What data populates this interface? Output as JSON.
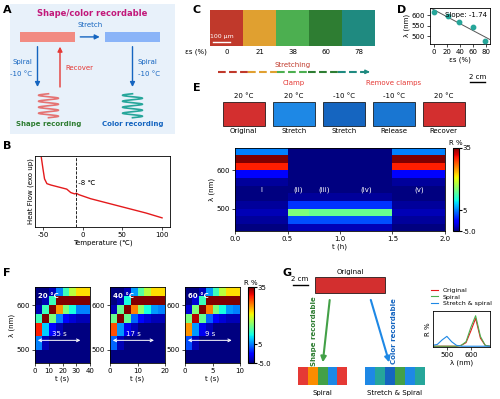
{
  "panels": [
    "A",
    "B",
    "C",
    "D",
    "E",
    "F",
    "G"
  ],
  "diagram_A": {
    "title": "Shape/color recordable",
    "stretch": "Stretch",
    "left_arrow": [
      "Spiral",
      "-10 °C"
    ],
    "recover": "Recover",
    "right_arrow": [
      "Spiral",
      "-10 °C"
    ],
    "left_result": "Shape recording",
    "right_result": "Color recording"
  },
  "image_C": {
    "colors": [
      "#c0392b",
      "#e0a030",
      "#4caf50",
      "#2e7d32",
      "#1f8a80"
    ],
    "strain_labels": [
      "0",
      "21",
      "38",
      "60",
      "78"
    ],
    "axis_label": "εs (%)",
    "arrow_label": "Stretching",
    "scale_bar": "100 μm"
  },
  "photos_E": {
    "photos": [
      {
        "temperature": "20 °C",
        "label": "Original",
        "color": "#d32f2f"
      },
      {
        "temperature": "20 °C",
        "label": "Stretch",
        "color": "#1e88e5",
        "note": "Clamp"
      },
      {
        "temperature": "-10 °C",
        "label": "Stretch",
        "color": "#1565c0"
      },
      {
        "temperature": "-10 °C",
        "label": "Release",
        "color": "#1976d2",
        "note": "Remove clamps"
      },
      {
        "temperature": "20 °C",
        "label": "Recover",
        "color": "#d32f2f"
      }
    ],
    "scale_bar": "2 cm"
  },
  "diagram_G": {
    "original": "Original",
    "original_color": "#d32f2f",
    "scale_bar": "2 cm",
    "shape_arrow": "Shape recordable",
    "color_arrow": "Color recordable",
    "results": [
      "Spiral",
      "Stretch & Spiral"
    ]
  },
  "chart_data": [
    {
      "type": "line",
      "x": [
        -52,
        -50,
        -48,
        -45,
        -40,
        -30,
        -20,
        -15,
        -10,
        -8,
        -5,
        0,
        10,
        20,
        40,
        60,
        80,
        100
      ],
      "values": [
        10.2,
        8.6,
        7.1,
        6.4,
        6.2,
        5.9,
        5.6,
        5.1,
        4.9,
        5.0,
        4.8,
        4.6,
        4.2,
        3.9,
        3.3,
        2.7,
        2.1,
        1.4
      ],
      "color": "#e41a1c",
      "xlabel": "Temperature (℃)",
      "ylabel": "Heat Flow (exo up)",
      "xlim": [
        -60,
        110
      ],
      "xticks": [
        -50,
        0,
        50,
        100
      ],
      "ylim": [
        0,
        10.5
      ],
      "tick_labels": "x",
      "transition": -8,
      "annotation": "-8 ℃"
    },
    {
      "type": "scatter",
      "x": [
        0,
        21,
        38,
        60,
        78
      ],
      "values": [
        615,
        598,
        570,
        545,
        481
      ],
      "color": "#26a69a",
      "line_style": "solid",
      "xlabel": "εs (%)",
      "ylabel": "λ (nm)",
      "xlim": [
        -6,
        86
      ],
      "xticks": [
        0,
        20,
        40,
        60,
        80
      ],
      "ylim": [
        465,
        635
      ],
      "yticks": [
        500,
        550,
        600
      ],
      "annotation": "Slope: -1.74"
    },
    {
      "type": "heatmap",
      "x_edges": [
        0,
        0.5,
        0.7,
        1.0,
        1.5,
        2.0
      ],
      "y_edges": [
        440,
        460,
        480,
        500,
        520,
        540,
        560,
        580,
        600,
        620,
        640,
        660
      ],
      "cells": [
        [
          -5,
          -3,
          -3,
          -3,
          -5
        ],
        [
          -4,
          3,
          3,
          3,
          -4
        ],
        [
          -3,
          15,
          14,
          14,
          -3
        ],
        [
          -4,
          2,
          2,
          2,
          -4
        ],
        [
          -5,
          -4,
          -4,
          -4,
          -5
        ],
        [
          -5,
          -5,
          -5,
          -5,
          -5
        ],
        [
          -4,
          -5,
          -5,
          -5,
          -4
        ],
        [
          0,
          -5,
          -5,
          -5,
          0
        ],
        [
          30,
          -5,
          -5,
          -5,
          30
        ],
        [
          35,
          -5,
          -5,
          -5,
          35
        ],
        [
          5,
          -5,
          -5,
          -5,
          5
        ]
      ],
      "stage_labels": [
        "I",
        "(ii)",
        "(iii)",
        "(iv)",
        "(v)"
      ],
      "xlabel": "t (h)",
      "ylabel": "λ (nm)",
      "xlim": [
        0,
        2
      ],
      "xticks": [
        {
          "value": 0,
          "label": "0.0"
        },
        0.5,
        {
          "value": 1,
          "label": "1.0"
        },
        1.5,
        {
          "value": 2,
          "label": "2.0"
        }
      ],
      "ylim": [
        440,
        660
      ],
      "yticks": [
        500,
        600
      ],
      "colorbar_label": "R %",
      "colorbar_range": [
        -5,
        35
      ],
      "colorbar_ticks": [
        {
          "value": -5,
          "label": "-5.0"
        },
        5,
        35
      ]
    },
    {
      "type": "heatmap",
      "title": "20 °C",
      "x_edges": [
        0,
        5,
        10,
        15,
        20,
        25,
        30,
        35,
        40
      ],
      "y_edges": [
        470,
        500,
        530,
        560,
        580,
        600,
        620,
        640
      ],
      "cells": [
        [
          -5,
          -5,
          -5,
          -5,
          -5,
          -5,
          -5,
          -5
        ],
        [
          5,
          -3,
          -5,
          -5,
          -5,
          -5,
          -5,
          -5
        ],
        [
          30,
          8,
          0,
          -3,
          -5,
          -5,
          -5,
          -5
        ],
        [
          12,
          35,
          15,
          5,
          0,
          -2,
          -3,
          -3
        ],
        [
          -3,
          12,
          35,
          25,
          15,
          10,
          5,
          5
        ],
        [
          -5,
          -3,
          12,
          35,
          35,
          35,
          35,
          35
        ],
        [
          -5,
          -5,
          -3,
          5,
          12,
          18,
          22,
          22
        ]
      ],
      "xlabel": "t (s)",
      "ylabel": "λ (nm)",
      "xlim": [
        0,
        40
      ],
      "xticks": [
        0,
        10,
        20,
        30,
        40
      ],
      "ylim": [
        470,
        640
      ],
      "yticks": [
        500,
        600
      ],
      "annotation": "35 s",
      "duration": 35
    },
    {
      "type": "heatmap",
      "title": "40 °C",
      "x_edges": [
        0,
        2.5,
        5,
        7.5,
        10,
        12.5,
        15,
        17.5,
        20
      ],
      "y_edges": [
        470,
        500,
        530,
        560,
        580,
        600,
        620,
        640
      ],
      "cells": [
        [
          -5,
          -5,
          -5,
          -5,
          -5,
          -5,
          -5,
          -5
        ],
        [
          4,
          -3,
          -5,
          -5,
          -5,
          -5,
          -5,
          -5
        ],
        [
          28,
          6,
          -1,
          -3,
          -5,
          -5,
          -5,
          -5
        ],
        [
          14,
          35,
          14,
          4,
          0,
          -2,
          -3,
          -3
        ],
        [
          -3,
          14,
          35,
          26,
          16,
          10,
          6,
          5
        ],
        [
          -5,
          -3,
          10,
          35,
          35,
          35,
          35,
          35
        ],
        [
          -5,
          -5,
          -3,
          6,
          13,
          18,
          22,
          22
        ]
      ],
      "xlabel": "t (s)",
      "xlim": [
        0,
        20
      ],
      "xticks": [
        0,
        10,
        20
      ],
      "ylim": [
        470,
        640
      ],
      "yticks": [
        500,
        600
      ],
      "annotation": "17 s",
      "duration": 17
    },
    {
      "type": "heatmap",
      "title": "60 °C",
      "x_edges": [
        0,
        1.25,
        2.5,
        3.75,
        5,
        6.25,
        7.5,
        8.75,
        10
      ],
      "y_edges": [
        470,
        500,
        530,
        560,
        580,
        600,
        620,
        640
      ],
      "cells": [
        [
          -5,
          -5,
          -5,
          -5,
          -5,
          -5,
          -5,
          -5
        ],
        [
          3,
          -3,
          -5,
          -5,
          -5,
          -5,
          -5,
          -5
        ],
        [
          25,
          6,
          -1,
          -3,
          -5,
          -5,
          -5,
          -5
        ],
        [
          15,
          33,
          14,
          4,
          0,
          -2,
          -3,
          -3
        ],
        [
          -2,
          15,
          35,
          26,
          15,
          10,
          6,
          5
        ],
        [
          -5,
          -2,
          12,
          35,
          35,
          35,
          35,
          35
        ],
        [
          -5,
          -5,
          -3,
          6,
          12,
          18,
          22,
          22
        ]
      ],
      "xlabel": "t (s)",
      "xlim": [
        0,
        10
      ],
      "xticks": [
        0,
        5,
        10
      ],
      "ylim": [
        470,
        640
      ],
      "yticks": [
        500,
        600
      ],
      "annotation": "9 s",
      "duration": 9,
      "colorbar_label": "R %",
      "colorbar_range": [
        -5,
        35
      ],
      "colorbar_ticks": [
        {
          "value": -5,
          "label": "-5.0"
        },
        5,
        35
      ]
    },
    {
      "type": "line",
      "x": [
        440,
        460,
        480,
        500,
        520,
        540,
        560,
        580,
        600,
        620,
        640,
        660,
        680
      ],
      "series": [
        {
          "name": "Original",
          "color": "#e41a1c",
          "values": [
            1,
            1,
            1,
            1,
            1,
            1,
            2,
            5,
            18,
            32,
            10,
            2,
            1
          ]
        },
        {
          "name": "Spiral",
          "color": "#4caf50",
          "values": [
            1,
            1,
            1,
            1,
            1,
            1,
            2,
            6,
            22,
            35,
            12,
            2,
            1
          ]
        },
        {
          "name": "Stretch & spiral",
          "color": "#1e88e5",
          "values": [
            2,
            3,
            8,
            12,
            6,
            2,
            1,
            1,
            1,
            1,
            1,
            1,
            1
          ]
        }
      ],
      "xlabel": "λ (nm)",
      "ylabel": "R %",
      "xlim": [
        440,
        680
      ],
      "xticks": [
        500,
        600
      ],
      "ylim": [
        0,
        40
      ],
      "tick_labels": "x",
      "legend": "lower center"
    }
  ]
}
